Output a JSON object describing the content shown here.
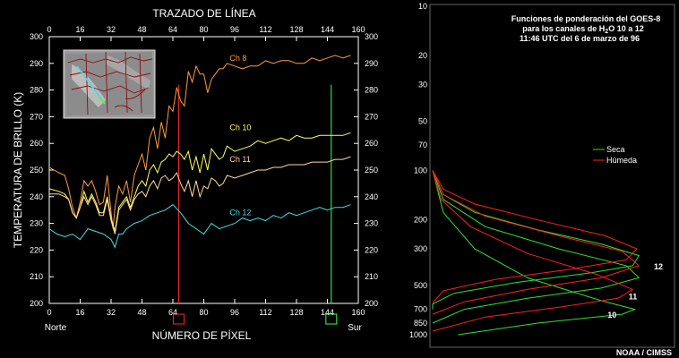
{
  "chart_data": [
    {
      "type": "line",
      "title": "TRAZADO DE LÍNEA",
      "xlabel": "NÚMERO DE PÍXEL",
      "ylabel": "TEMPERATURA DE BRILLO (K)",
      "xlim": [
        0,
        160
      ],
      "ylim": [
        200,
        300
      ],
      "xticks": [
        0,
        16,
        32,
        48,
        64,
        80,
        96,
        112,
        128,
        144,
        160
      ],
      "yticks": [
        200,
        210,
        220,
        230,
        240,
        250,
        260,
        270,
        280,
        290,
        300
      ],
      "left_end_label": "Norte",
      "right_end_label": "Sur",
      "markers": [
        {
          "x": 67,
          "color": "#ff2020"
        },
        {
          "x": 146,
          "color": "#40ff40"
        }
      ],
      "series": [
        {
          "name": "Ch 8",
          "color": "#ff9a40",
          "x": [
            0,
            5,
            8,
            10,
            12,
            14,
            16,
            18,
            20,
            22,
            24,
            26,
            28,
            30,
            32,
            33,
            34,
            36,
            38,
            40,
            42,
            44,
            46,
            48,
            50,
            52,
            54,
            56,
            58,
            60,
            62,
            64,
            66,
            68,
            70,
            72,
            74,
            76,
            78,
            80,
            82,
            84,
            86,
            88,
            90,
            92,
            96,
            100,
            104,
            108,
            112,
            116,
            120,
            124,
            128,
            132,
            136,
            140,
            144,
            148,
            152,
            156
          ],
          "values": [
            251,
            249,
            248,
            243,
            236,
            232,
            238,
            246,
            244,
            246,
            242,
            237,
            238,
            248,
            234,
            228,
            236,
            244,
            241,
            246,
            238,
            248,
            252,
            256,
            250,
            262,
            266,
            258,
            268,
            262,
            274,
            272,
            281,
            276,
            274,
            287,
            283,
            289,
            286,
            286,
            279,
            284,
            286,
            288,
            288,
            290,
            289,
            288,
            289,
            289,
            291,
            290,
            291,
            291,
            290,
            290,
            292,
            291,
            292,
            293,
            292,
            293
          ]
        },
        {
          "name": "Ch 10",
          "color": "#ffff60",
          "x": [
            0,
            5,
            8,
            10,
            12,
            14,
            16,
            18,
            20,
            22,
            24,
            26,
            28,
            30,
            32,
            34,
            36,
            38,
            40,
            42,
            44,
            46,
            48,
            50,
            52,
            54,
            56,
            58,
            60,
            62,
            64,
            66,
            68,
            70,
            72,
            74,
            76,
            78,
            80,
            82,
            84,
            86,
            88,
            90,
            92,
            96,
            100,
            104,
            108,
            112,
            116,
            120,
            124,
            128,
            132,
            136,
            140,
            144,
            148,
            152,
            156
          ],
          "values": [
            243,
            242,
            241,
            239,
            234,
            232,
            236,
            242,
            238,
            241,
            238,
            234,
            234,
            240,
            232,
            227,
            236,
            238,
            240,
            236,
            240,
            244,
            246,
            244,
            250,
            252,
            249,
            253,
            254,
            256,
            255,
            257,
            256,
            254,
            257,
            250,
            255,
            249,
            256,
            250,
            258,
            256,
            254,
            255,
            259,
            257,
            258,
            259,
            261,
            260,
            261,
            262,
            261,
            263,
            262,
            262,
            263,
            263,
            263,
            263,
            264
          ]
        },
        {
          "name": "Ch 11",
          "color": "#ffd8a0",
          "x": [
            0,
            5,
            8,
            10,
            12,
            14,
            16,
            18,
            20,
            22,
            24,
            26,
            28,
            30,
            32,
            34,
            36,
            38,
            40,
            42,
            44,
            46,
            48,
            50,
            52,
            54,
            56,
            58,
            60,
            62,
            64,
            66,
            68,
            70,
            72,
            74,
            76,
            78,
            80,
            82,
            84,
            86,
            88,
            90,
            92,
            96,
            100,
            104,
            108,
            112,
            116,
            120,
            124,
            128,
            132,
            136,
            140,
            144,
            148,
            152,
            156
          ],
          "values": [
            241,
            241,
            240,
            239,
            234,
            232,
            236,
            240,
            237,
            240,
            237,
            233,
            233,
            239,
            231,
            226,
            235,
            237,
            239,
            235,
            239,
            241,
            242,
            240,
            244,
            246,
            243,
            247,
            248,
            246,
            247,
            249,
            245,
            242,
            246,
            240,
            246,
            240,
            244,
            243,
            247,
            246,
            244,
            245,
            248,
            247,
            248,
            249,
            250,
            250,
            251,
            251,
            252,
            252,
            252,
            253,
            253,
            253,
            254,
            254,
            255
          ]
        },
        {
          "name": "Ch 12",
          "color": "#40e0e8",
          "x": [
            0,
            4,
            8,
            12,
            16,
            20,
            24,
            28,
            32,
            34,
            36,
            38,
            40,
            44,
            48,
            52,
            56,
            60,
            64,
            68,
            72,
            76,
            80,
            84,
            88,
            92,
            96,
            100,
            104,
            108,
            112,
            116,
            120,
            124,
            128,
            132,
            136,
            140,
            144,
            148,
            152,
            156
          ],
          "values": [
            228,
            226,
            225,
            226,
            224,
            228,
            227,
            226,
            224,
            221,
            226,
            226,
            228,
            230,
            231,
            233,
            234,
            235,
            237,
            234,
            230,
            228,
            226,
            230,
            228,
            229,
            230,
            232,
            231,
            232,
            231,
            233,
            232,
            234,
            233,
            234,
            235,
            236,
            235,
            236,
            236,
            237
          ]
        }
      ],
      "series_labels": [
        {
          "series": "Ch 8",
          "x": 92,
          "y": 291
        },
        {
          "series": "Ch 10",
          "x": 92,
          "y": 265
        },
        {
          "series": "Ch 11",
          "x": 92,
          "y": 253
        },
        {
          "series": "Ch 12",
          "x": 92,
          "y": 233
        }
      ]
    },
    {
      "type": "line",
      "title": "Funciones de ponderación del GOES-8",
      "subtitle_parts": [
        "para los canales de H",
        "2",
        "O 10 a 12"
      ],
      "timestamp": "11:46 UTC del 6 de marzo de 96",
      "yscale": "log",
      "ylim": [
        1000,
        10
      ],
      "xlim": [
        0,
        1
      ],
      "yticks": [
        10,
        20,
        30,
        50,
        70,
        100,
        200,
        300,
        500,
        700,
        850,
        1000
      ],
      "legend": [
        {
          "name": "Seca",
          "color": "#30e030"
        },
        {
          "name": "Húmeda",
          "color": "#ff2020"
        }
      ],
      "legend_position": "middle-right",
      "series": [
        {
          "name": "Seca 10",
          "color": "#30e030",
          "p": [
            100,
            180,
            300,
            450,
            620,
            700,
            750,
            850,
            1000
          ],
          "w": [
            0.0,
            0.05,
            0.2,
            0.45,
            0.8,
            0.96,
            0.9,
            0.5,
            0.12
          ]
        },
        {
          "name": "Seca 11",
          "color": "#30e030",
          "p": [
            100,
            150,
            220,
            300,
            380,
            450,
            520,
            600,
            700,
            850
          ],
          "w": [
            0.0,
            0.05,
            0.25,
            0.6,
            0.92,
            0.98,
            0.8,
            0.45,
            0.15,
            0.0
          ]
        },
        {
          "name": "Seca 12",
          "color": "#30e030",
          "p": [
            100,
            140,
            180,
            230,
            280,
            330,
            380,
            420,
            480,
            560,
            650,
            700
          ],
          "w": [
            0.0,
            0.05,
            0.2,
            0.5,
            0.8,
            0.98,
            0.95,
            0.75,
            0.4,
            0.1,
            0.0,
            0.0
          ]
        },
        {
          "name": "Húmeda 10",
          "color": "#ff2020",
          "p": [
            100,
            150,
            220,
            320,
            430,
            530,
            600,
            680,
            780,
            950
          ],
          "w": [
            0.0,
            0.04,
            0.18,
            0.45,
            0.78,
            0.95,
            0.88,
            0.6,
            0.25,
            0.0
          ]
        },
        {
          "name": "Húmeda 11",
          "color": "#ff2020",
          "p": [
            100,
            140,
            190,
            250,
            310,
            380,
            450,
            530,
            630,
            750
          ],
          "w": [
            0.0,
            0.05,
            0.25,
            0.6,
            0.9,
            0.98,
            0.8,
            0.45,
            0.15,
            0.0
          ]
        },
        {
          "name": "Húmeda 12",
          "color": "#ff2020",
          "p": [
            100,
            130,
            160,
            200,
            250,
            300,
            350,
            400,
            460,
            540,
            640
          ],
          "w": [
            0.0,
            0.05,
            0.2,
            0.5,
            0.82,
            0.97,
            0.92,
            0.65,
            0.3,
            0.05,
            0.0
          ]
        }
      ],
      "curve_labels": [
        {
          "text": "12",
          "p": 380,
          "w": 1.0
        },
        {
          "text": "11",
          "p": 580,
          "w": 0.88
        },
        {
          "text": "10",
          "p": 750,
          "w": 0.78
        }
      ]
    }
  ],
  "footer": "NOAA / CIMSS"
}
